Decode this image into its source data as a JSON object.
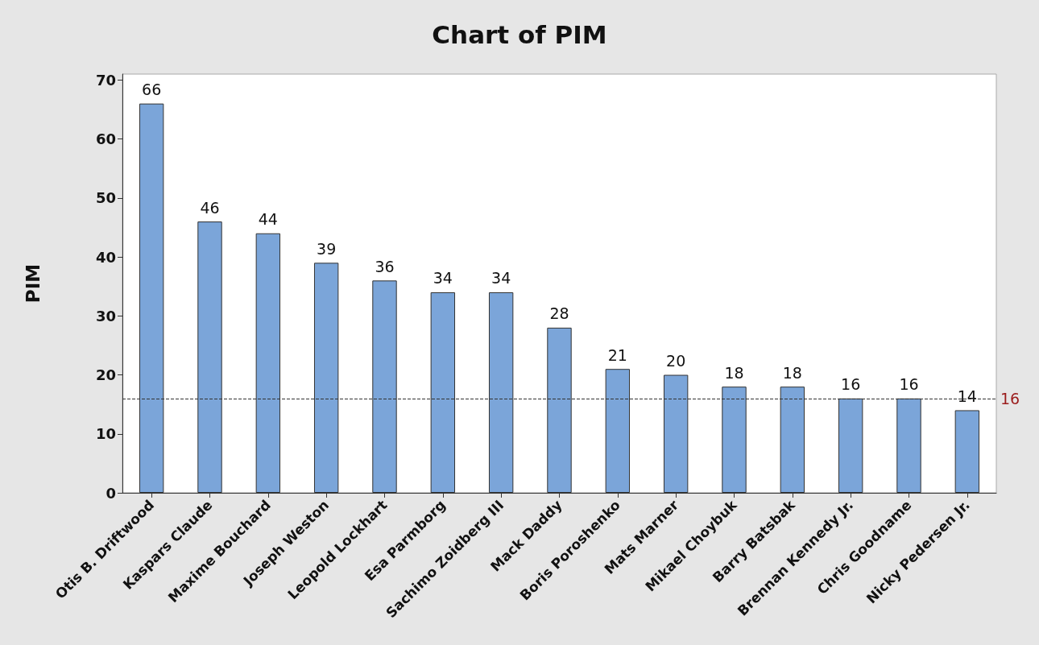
{
  "chart_data": {
    "type": "bar",
    "title": "Chart of PIM",
    "ylabel": "PIM",
    "categories": [
      "Otis B. Driftwood",
      "Kaspars Claude",
      "Maxime Bouchard",
      "Joseph Weston",
      "Leopold Lockhart",
      "Esa Parmborg",
      "Sachimo Zoidberg III",
      "Mack Daddy",
      "Boris Poroshenko",
      "Mats Marner",
      "Mikael Choybuk",
      "Barry Batsbak",
      "Brennan Kennedy Jr.",
      "Chris Goodname",
      "Nicky Pedersen Jr."
    ],
    "values": [
      66,
      46,
      44,
      39,
      36,
      34,
      34,
      28,
      21,
      20,
      18,
      18,
      16,
      16,
      14
    ],
    "color": "#7ba5d9",
    "ylim": [
      0,
      71
    ],
    "yticks": [
      0,
      10,
      20,
      30,
      40,
      50,
      60,
      70
    ],
    "data_labels": true,
    "grid": false,
    "ref_lines": [
      {
        "axis": "y",
        "value": 16,
        "label": "16",
        "color": "#333333",
        "line_style": "dashed"
      }
    ]
  }
}
